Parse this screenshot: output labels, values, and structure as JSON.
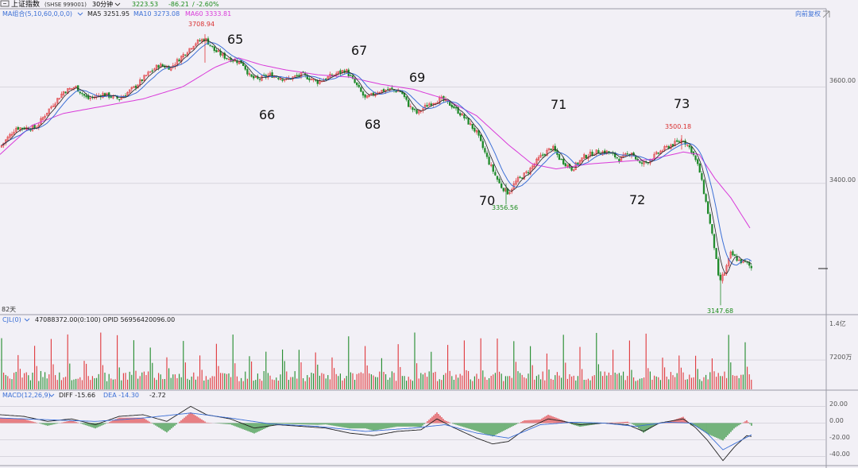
{
  "header": {
    "window_icon": "window-icon",
    "title": "上证指数",
    "code": "(SHSE 999001)",
    "period": "30分钟",
    "dropdown_icon": "chevron-down-icon",
    "last": "3223.53",
    "change": "-86.21",
    "pct": "/ -2.60%",
    "adjust": "向前复权"
  },
  "colors": {
    "background": "#f2f0f6",
    "up": "#e0363a",
    "down": "#1f8a2a",
    "ma5": "#222222",
    "ma10": "#3b6fd6",
    "ma60": "#d93ad9",
    "diff": "#222222",
    "dea": "#3b6fd6",
    "green_text": "#1a8a1a",
    "red_text": "#d93030"
  },
  "price_panel": {
    "legend": {
      "group": "MA组合(5,10,60,0,0,0)",
      "ma5": "MA5 3251.95",
      "ma10": "MA10 3273.08",
      "ma60": "MA60 3333.81"
    },
    "span_label": "82天",
    "annotations": [
      "65",
      "66",
      "67",
      "68",
      "69",
      "70",
      "71",
      "72",
      "73"
    ]
  },
  "volume_panel": {
    "legend": "CJL(0)",
    "values_text": "47088372.00(0:100)  OPID 56956420096.00",
    "axis_labels": [
      "1.4亿",
      "7200万"
    ]
  },
  "macd_panel": {
    "legend": "MACD(12,26,9)",
    "diff": "DIFF -15.66",
    "dea": "DEA -14.30",
    "macd": "-2.72",
    "axis_labels": [
      "20.00",
      "0.00",
      "-20.00",
      "-40.00"
    ]
  },
  "chart_data": {
    "type": "candlestick",
    "price_axis": {
      "ylim": [
        3130,
        3760
      ],
      "ticks": [
        "3600.00",
        "3400.00"
      ],
      "tick_values": [
        3600,
        3400
      ]
    },
    "marks": [
      {
        "label": "3708.94",
        "value": 3708.94,
        "kind": "high"
      },
      {
        "label": "3356.56",
        "value": 3356.56,
        "kind": "low"
      },
      {
        "label": "3500.18",
        "value": 3500.18,
        "kind": "high"
      },
      {
        "label": "3147.68",
        "value": 3147.68,
        "kind": "low"
      }
    ],
    "close_anchors": [
      [
        0,
        3475
      ],
      [
        20,
        3515
      ],
      [
        45,
        3515
      ],
      [
        60,
        3550
      ],
      [
        80,
        3590
      ],
      [
        95,
        3600
      ],
      [
        110,
        3575
      ],
      [
        130,
        3585
      ],
      [
        150,
        3575
      ],
      [
        170,
        3600
      ],
      [
        185,
        3625
      ],
      [
        200,
        3645
      ],
      [
        215,
        3640
      ],
      [
        230,
        3665
      ],
      [
        245,
        3690
      ],
      [
        258,
        3700
      ],
      [
        270,
        3675
      ],
      [
        285,
        3660
      ],
      [
        295,
        3655
      ],
      [
        305,
        3650
      ],
      [
        315,
        3620
      ],
      [
        325,
        3615
      ],
      [
        340,
        3625
      ],
      [
        360,
        3615
      ],
      [
        380,
        3625
      ],
      [
        400,
        3610
      ],
      [
        420,
        3625
      ],
      [
        435,
        3635
      ],
      [
        450,
        3600
      ],
      [
        460,
        3575
      ],
      [
        475,
        3590
      ],
      [
        490,
        3595
      ],
      [
        505,
        3590
      ],
      [
        515,
        3560
      ],
      [
        525,
        3545
      ],
      [
        540,
        3565
      ],
      [
        555,
        3575
      ],
      [
        570,
        3560
      ],
      [
        585,
        3535
      ],
      [
        600,
        3505
      ],
      [
        615,
        3445
      ],
      [
        630,
        3395
      ],
      [
        640,
        3380
      ],
      [
        650,
        3405
      ],
      [
        665,
        3425
      ],
      [
        680,
        3455
      ],
      [
        695,
        3475
      ],
      [
        705,
        3450
      ],
      [
        720,
        3430
      ],
      [
        735,
        3455
      ],
      [
        750,
        3465
      ],
      [
        765,
        3465
      ],
      [
        780,
        3450
      ],
      [
        795,
        3465
      ],
      [
        805,
        3440
      ],
      [
        815,
        3445
      ],
      [
        830,
        3465
      ],
      [
        845,
        3480
      ],
      [
        860,
        3490
      ],
      [
        870,
        3470
      ],
      [
        880,
        3430
      ],
      [
        890,
        3350
      ],
      [
        900,
        3260
      ],
      [
        905,
        3195
      ],
      [
        912,
        3215
      ],
      [
        920,
        3255
      ],
      [
        930,
        3240
      ],
      [
        940,
        3235
      ],
      [
        946,
        3225
      ]
    ],
    "ma60_anchors": [
      [
        0,
        3460
      ],
      [
        40,
        3520
      ],
      [
        80,
        3545
      ],
      [
        130,
        3560
      ],
      [
        180,
        3575
      ],
      [
        230,
        3600
      ],
      [
        270,
        3640
      ],
      [
        300,
        3660
      ],
      [
        330,
        3645
      ],
      [
        360,
        3635
      ],
      [
        400,
        3625
      ],
      [
        440,
        3620
      ],
      [
        480,
        3605
      ],
      [
        520,
        3595
      ],
      [
        560,
        3575
      ],
      [
        600,
        3540
      ],
      [
        640,
        3480
      ],
      [
        670,
        3440
      ],
      [
        700,
        3430
      ],
      [
        740,
        3440
      ],
      [
        780,
        3445
      ],
      [
        820,
        3450
      ],
      [
        860,
        3465
      ],
      [
        880,
        3460
      ],
      [
        900,
        3410
      ],
      [
        920,
        3370
      ],
      [
        945,
        3305
      ]
    ],
    "macd_axis": {
      "ylim": [
        -50,
        28
      ]
    },
    "diff_anchors": [
      [
        0,
        10
      ],
      [
        30,
        8
      ],
      [
        60,
        2
      ],
      [
        90,
        5
      ],
      [
        120,
        -2
      ],
      [
        150,
        8
      ],
      [
        180,
        10
      ],
      [
        210,
        2
      ],
      [
        240,
        20
      ],
      [
        260,
        10
      ],
      [
        290,
        5
      ],
      [
        320,
        -6
      ],
      [
        350,
        -2
      ],
      [
        380,
        -4
      ],
      [
        410,
        -6
      ],
      [
        440,
        -12
      ],
      [
        470,
        -15
      ],
      [
        500,
        -10
      ],
      [
        530,
        -8
      ],
      [
        550,
        5
      ],
      [
        570,
        -5
      ],
      [
        600,
        -18
      ],
      [
        620,
        -25
      ],
      [
        640,
        -22
      ],
      [
        660,
        -8
      ],
      [
        690,
        5
      ],
      [
        710,
        2
      ],
      [
        730,
        -2
      ],
      [
        760,
        0
      ],
      [
        790,
        -2
      ],
      [
        810,
        -10
      ],
      [
        830,
        0
      ],
      [
        860,
        5
      ],
      [
        875,
        -5
      ],
      [
        890,
        -20
      ],
      [
        910,
        -45
      ],
      [
        925,
        -28
      ],
      [
        940,
        -15
      ],
      [
        946,
        -16
      ]
    ],
    "dea_anchors": [
      [
        0,
        6
      ],
      [
        60,
        4
      ],
      [
        120,
        2
      ],
      [
        180,
        6
      ],
      [
        240,
        12
      ],
      [
        290,
        6
      ],
      [
        340,
        -1
      ],
      [
        400,
        -4
      ],
      [
        460,
        -10
      ],
      [
        520,
        -6
      ],
      [
        560,
        -2
      ],
      [
        600,
        -12
      ],
      [
        640,
        -18
      ],
      [
        680,
        -2
      ],
      [
        720,
        1
      ],
      [
        760,
        0
      ],
      [
        800,
        -4
      ],
      [
        840,
        1
      ],
      [
        870,
        0
      ],
      [
        890,
        -12
      ],
      [
        910,
        -32
      ],
      [
        930,
        -22
      ],
      [
        946,
        -14
      ]
    ],
    "volume_axis": {
      "ylim": [
        0,
        160
      ],
      "tick_values": [
        140,
        72
      ]
    }
  }
}
